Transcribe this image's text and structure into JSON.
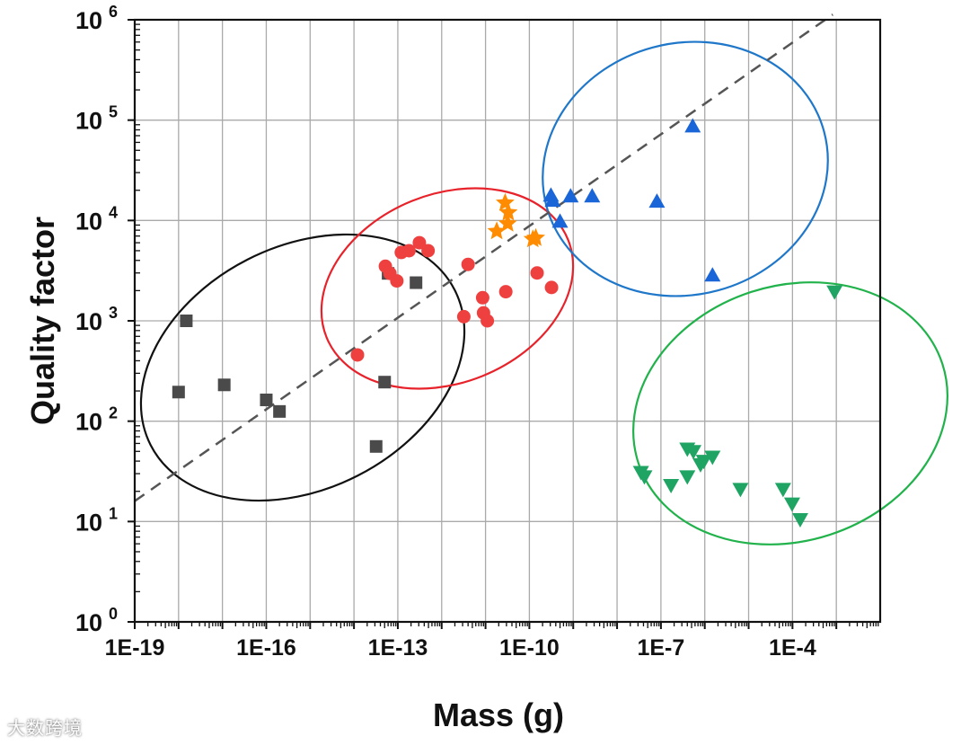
{
  "chart_data": {
    "type": "scatter",
    "title": "",
    "xlabel": "Mass (g)",
    "ylabel": "Quality factor",
    "xscale": "log",
    "yscale": "log",
    "xlim": [
      1e-19,
      0.01
    ],
    "ylim": [
      1,
      1000000
    ],
    "grid": true,
    "x_tick_labels": [
      {
        "value": 1e-19,
        "label": "1E-19"
      },
      {
        "value": 1e-16,
        "label": "1E-16"
      },
      {
        "value": 1e-13,
        "label": "1E-13"
      },
      {
        "value": 1e-10,
        "label": "1E-10"
      },
      {
        "value": 1e-07,
        "label": "1E-7"
      },
      {
        "value": 0.0001,
        "label": "1E-4"
      }
    ],
    "y_tick_labels": [
      {
        "value": 1,
        "base": "10",
        "exp": "0"
      },
      {
        "value": 10,
        "base": "10",
        "exp": "1"
      },
      {
        "value": 100,
        "base": "10",
        "exp": "2"
      },
      {
        "value": 1000,
        "base": "10",
        "exp": "3"
      },
      {
        "value": 10000,
        "base": "10",
        "exp": "4"
      },
      {
        "value": 100000,
        "base": "10",
        "exp": "5"
      },
      {
        "value": 1000000,
        "base": "10",
        "exp": "6"
      }
    ],
    "series": [
      {
        "name": "squares",
        "marker": "square",
        "color": "#4a4a4a",
        "ellipse_color": "#111111",
        "points": [
          [
            1e-18,
            195
          ],
          [
            1.5e-18,
            1000
          ],
          [
            1.1e-17,
            230
          ],
          [
            1e-16,
            163
          ],
          [
            2e-16,
            125
          ],
          [
            3.2e-14,
            56
          ],
          [
            5e-14,
            245
          ],
          [
            6e-14,
            2970
          ],
          [
            2.6e-13,
            2400
          ]
        ]
      },
      {
        "name": "circles",
        "marker": "circle",
        "color": "#ef4040",
        "ellipse_color": "#e8222a",
        "points": [
          [
            1.2e-14,
            457
          ],
          [
            5.2e-14,
            3500
          ],
          [
            6.6e-14,
            2970
          ],
          [
            9.5e-14,
            2500
          ],
          [
            1.2e-13,
            4800
          ],
          [
            1.8e-13,
            5000
          ],
          [
            3.1e-13,
            6000
          ],
          [
            4.9e-13,
            5000
          ],
          [
            4e-12,
            3650
          ],
          [
            3.2e-12,
            1100
          ],
          [
            8.6e-12,
            1700
          ],
          [
            9e-12,
            1200
          ],
          [
            1.1e-11,
            1000
          ],
          [
            2.9e-11,
            1950
          ],
          [
            1.5e-10,
            3000
          ],
          [
            3.2e-10,
            2150
          ]
        ]
      },
      {
        "name": "stars",
        "marker": "star",
        "color": "#ff8c00",
        "ellipse_color": null,
        "points": [
          [
            2.8e-11,
            15000
          ],
          [
            3.3e-11,
            12000
          ],
          [
            1.8e-11,
            7800
          ],
          [
            3.2e-11,
            9300
          ],
          [
            1.2e-10,
            6500
          ],
          [
            1.4e-10,
            6700
          ]
        ]
      },
      {
        "name": "triangles-up",
        "marker": "triangle-up",
        "color": "#1a66d9",
        "ellipse_color": "#1f77c9",
        "points": [
          [
            3.1e-10,
            17800
          ],
          [
            3.4e-10,
            15800
          ],
          [
            5e-10,
            9800
          ],
          [
            8.7e-10,
            17500
          ],
          [
            2.7e-09,
            17500
          ],
          [
            8.1e-08,
            15500
          ],
          [
            5.3e-07,
            87000
          ],
          [
            1.5e-06,
            2850
          ]
        ]
      },
      {
        "name": "triangles-down",
        "marker": "triangle-down",
        "color": "#1fa463",
        "ellipse_color": "#21b24b",
        "points": [
          [
            3.5e-08,
            31
          ],
          [
            4.2e-08,
            28
          ],
          [
            1.7e-07,
            23
          ],
          [
            4e-07,
            28
          ],
          [
            4e-07,
            53
          ],
          [
            5.5e-07,
            50
          ],
          [
            8e-07,
            37
          ],
          [
            9.5e-07,
            40
          ],
          [
            1.5e-06,
            44
          ],
          [
            6.5e-06,
            21
          ],
          [
            6.1e-05,
            21
          ],
          [
            9.8e-05,
            15
          ],
          [
            0.00015,
            10.5
          ],
          [
            0.00091,
            1950
          ]
        ]
      }
    ],
    "trend_line": {
      "style": "dashed",
      "color": "#555555",
      "slope_log": 0.303,
      "intercept_at_1e-19": 16
    }
  },
  "watermark": {
    "text": "大数跨境"
  }
}
